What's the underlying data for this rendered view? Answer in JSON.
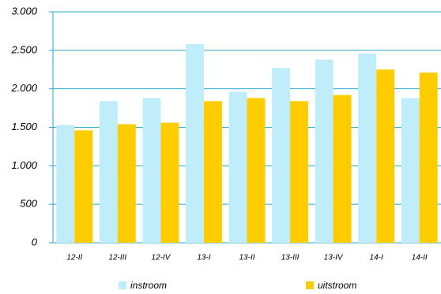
{
  "chart_data": {
    "type": "bar",
    "categories": [
      "12-II",
      "12-III",
      "12-IV",
      "13-I",
      "13-II",
      "13-III",
      "13-IV",
      "14-I",
      "14-II"
    ],
    "series": [
      {
        "name": "instroom",
        "color": "#bfeefa",
        "values": [
          1530,
          1840,
          1880,
          2580,
          1960,
          2270,
          2380,
          2460,
          1880
        ]
      },
      {
        "name": "uitstroom",
        "color": "#ffcc00",
        "values": [
          1460,
          1540,
          1560,
          1840,
          1880,
          1840,
          1920,
          2250,
          2210
        ]
      }
    ],
    "ylim": [
      0,
      3000
    ],
    "yticks": [
      0,
      500,
      {
        "value": 1000,
        "label": "1.000"
      },
      {
        "value": 1500,
        "label": "1.500"
      },
      {
        "value": 2000,
        "label": "2.000"
      },
      {
        "value": 2500,
        "label": "2.500"
      },
      {
        "value": 3000,
        "label": "3.000"
      }
    ],
    "grid": true
  }
}
